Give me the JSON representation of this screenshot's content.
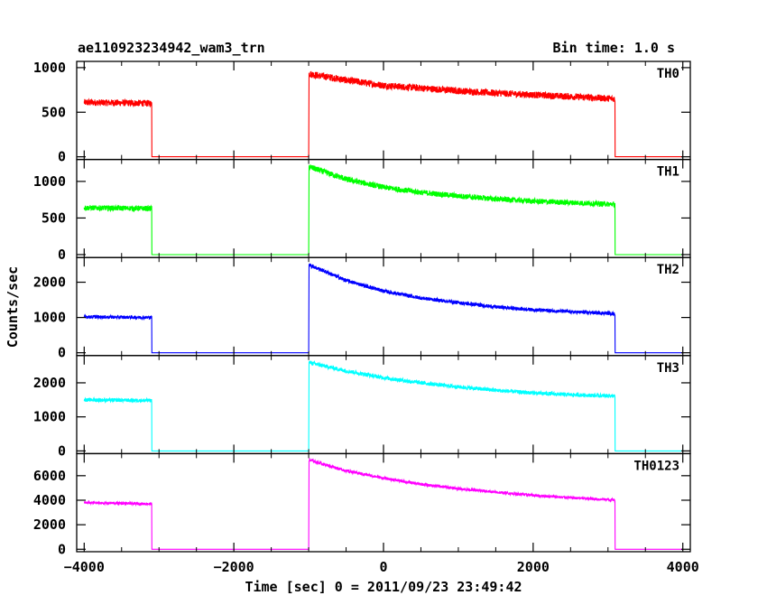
{
  "header": {
    "title": "ae110923234942_wam3_trn",
    "bin_time": "Bin time: 1.0 s"
  },
  "chart_data": {
    "type": "line",
    "title": "ae110923234942_wam3_trn",
    "subtitle": "Bin time: 1.0 s",
    "xlabel": "Time [sec] 0 = 2011/09/23 23:49:42",
    "ylabel": "Counts/sec",
    "xlim": [
      -4100,
      4100
    ],
    "x_ticks": [
      "-4000",
      "-2000",
      "0",
      "2000",
      "4000"
    ],
    "x_tick_values": [
      -4000,
      -2000,
      0,
      2000,
      4000
    ],
    "grid": false,
    "panels": [
      {
        "name": "TH0",
        "color": "#ff0000",
        "ylim": [
          -30,
          1070
        ],
        "y_ticks": [
          "0",
          "500",
          "1000"
        ],
        "y_tick_values": [
          0,
          500,
          1000
        ],
        "x": [
          -4000,
          -3100,
          -3099,
          -1000,
          -999,
          -500,
          0,
          500,
          1000,
          1500,
          2000,
          2500,
          3000,
          3090,
          3091,
          4000
        ],
        "y": [
          610,
          600,
          0,
          0,
          930,
          860,
          800,
          770,
          740,
          715,
          695,
          675,
          655,
          650,
          0,
          0
        ],
        "noise": 40
      },
      {
        "name": "TH1",
        "color": "#00ff00",
        "ylim": [
          -40,
          1300
        ],
        "y_ticks": [
          "0",
          "500",
          "1000"
        ],
        "y_tick_values": [
          0,
          500,
          1000
        ],
        "x": [
          -4000,
          -3100,
          -3099,
          -1000,
          -999,
          -500,
          0,
          500,
          1000,
          1500,
          2000,
          2500,
          3000,
          3090,
          3091,
          4000
        ],
        "y": [
          640,
          630,
          0,
          0,
          1200,
          1030,
          920,
          850,
          800,
          760,
          730,
          710,
          690,
          690,
          0,
          0
        ],
        "noise": 40
      },
      {
        "name": "TH2",
        "color": "#0000ff",
        "ylim": [
          -80,
          2700
        ],
        "y_ticks": [
          "0",
          "1000",
          "2000"
        ],
        "y_tick_values": [
          0,
          1000,
          2000
        ],
        "x": [
          -4000,
          -3100,
          -3099,
          -1000,
          -999,
          -500,
          0,
          500,
          1000,
          1500,
          2000,
          2500,
          3000,
          3090,
          3091,
          4000
        ],
        "y": [
          1020,
          1000,
          0,
          0,
          2500,
          2050,
          1750,
          1550,
          1420,
          1300,
          1220,
          1160,
          1120,
          1100,
          0,
          0
        ],
        "noise": 55
      },
      {
        "name": "TH3",
        "color": "#00ffff",
        "ylim": [
          -80,
          2800
        ],
        "y_ticks": [
          "0",
          "1000",
          "2000"
        ],
        "y_tick_values": [
          0,
          1000,
          2000
        ],
        "x": [
          -4000,
          -3100,
          -3099,
          -1000,
          -999,
          -500,
          0,
          500,
          1000,
          1500,
          2000,
          2500,
          3000,
          3090,
          3091,
          4000
        ],
        "y": [
          1500,
          1480,
          0,
          0,
          2600,
          2350,
          2150,
          2000,
          1880,
          1780,
          1700,
          1650,
          1620,
          1610,
          0,
          0
        ],
        "noise": 60
      },
      {
        "name": "TH0123",
        "color": "#ff00ff",
        "ylim": [
          -200,
          7800
        ],
        "y_ticks": [
          "0",
          "2000",
          "4000",
          "6000"
        ],
        "y_tick_values": [
          0,
          2000,
          4000,
          6000
        ],
        "x": [
          -4000,
          -3100,
          -3099,
          -1000,
          -999,
          -500,
          0,
          500,
          1000,
          1500,
          2000,
          2500,
          3000,
          3090,
          3091,
          4000
        ],
        "y": [
          3800,
          3700,
          0,
          0,
          7300,
          6400,
          5800,
          5300,
          4950,
          4650,
          4400,
          4200,
          4050,
          4030,
          0,
          0
        ],
        "noise": 120
      }
    ]
  }
}
